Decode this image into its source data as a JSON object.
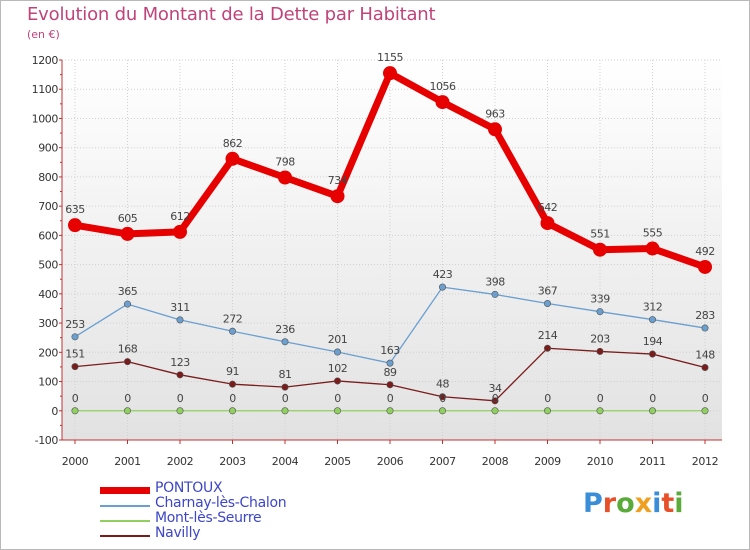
{
  "header": {
    "title": "Evolution du Montant de la Dette par Habitant",
    "subtitle": "(en €)"
  },
  "colors": {
    "title": "#c0437a",
    "legend_text": "#3d46c8",
    "axis_text": "#333333"
  },
  "logo": {
    "text": "Proxiti",
    "letter_colors": [
      "#3a8ed8",
      "#e8502a",
      "#5aab3a",
      "#f0a020",
      "#3a8ed8",
      "#e8502a",
      "#5aab3a"
    ]
  },
  "chart_data": {
    "type": "line",
    "title": "Evolution du Montant de la Dette par Habitant",
    "ylabel": "(en €)",
    "xlabel": "",
    "x": [
      "2000",
      "2001",
      "2002",
      "2003",
      "2004",
      "2005",
      "2006",
      "2007",
      "2008",
      "2009",
      "2010",
      "2011",
      "2012"
    ],
    "ylim": [
      -100,
      1200
    ],
    "yticks": [
      "-100",
      "0",
      "100",
      "200",
      "300",
      "400",
      "500",
      "600",
      "700",
      "800",
      "900",
      "1000",
      "1100",
      "1200"
    ],
    "grid": true,
    "legend_position": "bottom-left",
    "series": [
      {
        "name": "PONTOUX",
        "color": "#e60000",
        "width": 7,
        "marker": 7,
        "values": [
          635,
          605,
          612,
          862,
          798,
          734,
          1155,
          1056,
          963,
          642,
          551,
          555,
          492
        ],
        "labels": [
          "635",
          "605",
          "612",
          "862",
          "798",
          "734",
          "1155",
          "1056",
          "963",
          "642",
          "551",
          "555",
          "492"
        ]
      },
      {
        "name": "Charnay-lès-Chalon",
        "color": "#6a9fd0",
        "width": 1.3,
        "marker": 3.2,
        "values": [
          253,
          365,
          311,
          272,
          236,
          201,
          163,
          423,
          398,
          367,
          339,
          312,
          283
        ],
        "labels": [
          "253",
          "365",
          "311",
          "272",
          "236",
          "201",
          "163",
          "423",
          "398",
          "367",
          "339",
          "312",
          "283"
        ]
      },
      {
        "name": "Mont-lès-Seurre",
        "color": "#90d060",
        "width": 1.3,
        "marker": 3.2,
        "values": [
          0,
          0,
          0,
          0,
          0,
          0,
          0,
          0,
          0,
          0,
          0,
          0,
          0
        ],
        "labels": [
          "0",
          "0",
          "0",
          "0",
          "0",
          "0",
          "0",
          "0",
          "0",
          "0",
          "0",
          "0",
          "0"
        ]
      },
      {
        "name": "Navilly",
        "color": "#7a1c1c",
        "width": 1.3,
        "marker": 3.2,
        "values": [
          151,
          168,
          123,
          91,
          81,
          102,
          89,
          48,
          34,
          214,
          203,
          194,
          148
        ],
        "labels": [
          "151",
          "168",
          "123",
          "91",
          "81",
          "102",
          "89",
          "48",
          "34",
          "214",
          "203",
          "194",
          "148"
        ]
      }
    ]
  }
}
